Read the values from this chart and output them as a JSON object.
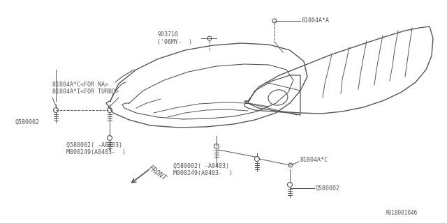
{
  "bg_color": "#ffffff",
  "line_color": "#555555",
  "text_color": "#555555",
  "part_number": "A81B001046",
  "labels": {
    "81804A_A": "81804A*A",
    "90371D": "903710",
    "06MY": "('06MY-  )",
    "na": "81804A*C<FOR NA>",
    "turbo": "81804A*I<FOR TURBO>",
    "Q580002_left": "Q580002",
    "Q580002_mid1": "Q580002( -A0403)",
    "M000249_mid1": "M000249(A0403-  )",
    "Q580002_mid2": "Q580002( -A0403)",
    "M000249_mid2": "M000249(A0403-  )",
    "81804A_C": "81804A*C",
    "Q580002_bot": "Q580002",
    "FRONT": "FRONT"
  },
  "font_size": 6.0
}
